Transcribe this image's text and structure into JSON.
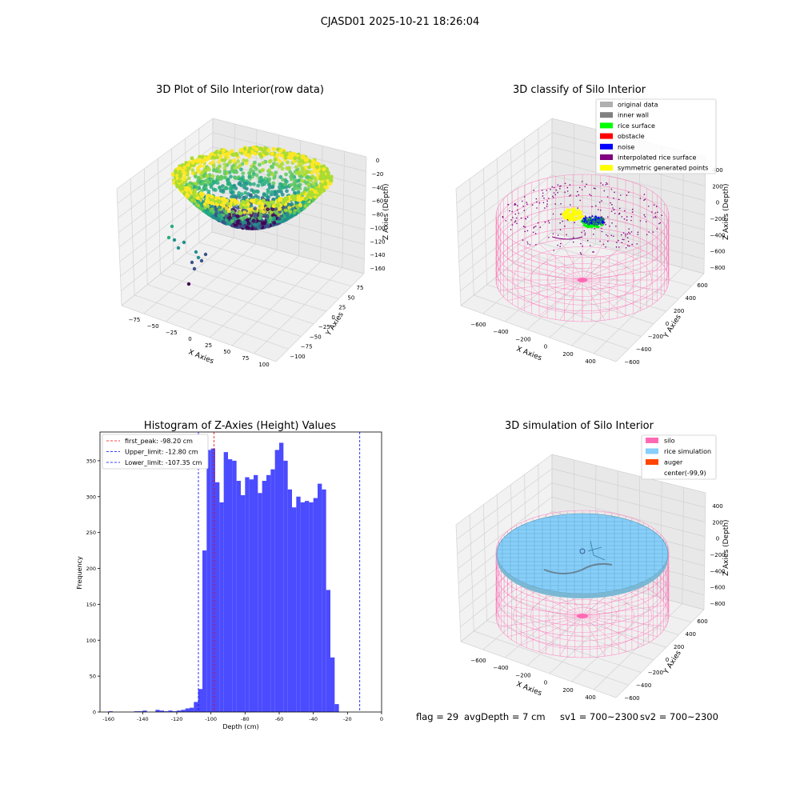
{
  "figure": {
    "suptitle": "CJASD01 2025-10-21 18:26:04",
    "footer": {
      "flag": "flag = 29",
      "avg_depth": "avgDepth = 7 cm",
      "sv1": "sv1 = 700~2300",
      "sv2": "sv2 = 700~2300"
    }
  },
  "colors": {
    "hist_bar": "#4b4bff",
    "first_peak": "#ff0000",
    "limit": "#0000ff",
    "silo": "#ff69b4",
    "rice_simulation": "#87cefa",
    "auger": "#ff4500",
    "original_data": "#b0b0b0",
    "inner_wall": "#808080",
    "rice_surface": "#00ff00",
    "obstacle": "#ff0000",
    "noise": "#0000ff",
    "interpolated_rice_surface": "#800080",
    "symmetric_generated_points": "#ffff00"
  },
  "chart_data": [
    {
      "type": "scatter",
      "title": "3D Plot of Silo Interior(row data)",
      "xlabel": "X Axies",
      "ylabel": "Y Axies",
      "zlabel": "Z Axies (Depth)",
      "xticks": [
        "−75",
        "−50",
        "−25",
        "0",
        "25",
        "50",
        "75",
        "100"
      ],
      "yticks": [
        "−100",
        "−75",
        "−50",
        "−25",
        "0",
        "25",
        "50",
        "75"
      ],
      "zticks": [
        "0",
        "−20",
        "−40",
        "−60",
        "−80",
        "−100",
        "−120",
        "−140",
        "−160"
      ],
      "colormap": "viridis"
    },
    {
      "type": "scatter",
      "title": "3D classify of Silo Interior",
      "xlabel": "X Axies",
      "ylabel": "Y Axies",
      "zlabel": "Z Axies (Depth)",
      "xticks": [
        "−600",
        "−400",
        "−200",
        "0",
        "200",
        "400"
      ],
      "yticks": [
        "−600",
        "−400",
        "−200",
        "0",
        "200",
        "400",
        "600"
      ],
      "zticks": [
        "400",
        "200",
        "0",
        "−200",
        "−400",
        "−600",
        "−800"
      ],
      "legend_position": "top-right",
      "legend": [
        {
          "label": "original data",
          "color": "#b0b0b0"
        },
        {
          "label": "inner wall",
          "color": "#808080"
        },
        {
          "label": "rice surface",
          "color": "#00ff00"
        },
        {
          "label": "obstacle",
          "color": "#ff0000"
        },
        {
          "label": "noise",
          "color": "#0000ff"
        },
        {
          "label": "interpolated rice surface",
          "color": "#800080"
        },
        {
          "label": "symmetric generated points",
          "color": "#ffff00"
        }
      ]
    },
    {
      "type": "bar",
      "title": "Histogram of Z-Axies (Height) Values",
      "xlabel": "Depth (cm)",
      "ylabel": "Frequency",
      "xlim": [
        -165,
        0
      ],
      "ylim": [
        0,
        390
      ],
      "xticks": [
        -160,
        -140,
        -120,
        -100,
        -80,
        -60,
        -40,
        -20,
        0
      ],
      "yticks": [
        0,
        50,
        100,
        150,
        200,
        250,
        300,
        350
      ],
      "bin_width": 2.5,
      "bins": [
        [
          -160,
          1
        ],
        [
          -145,
          1
        ],
        [
          -142.5,
          1
        ],
        [
          -140,
          2
        ],
        [
          -132.5,
          3
        ],
        [
          -130,
          2
        ],
        [
          -127.5,
          1
        ],
        [
          -125,
          2
        ],
        [
          -122.5,
          1
        ],
        [
          -120,
          2
        ],
        [
          -117.5,
          3
        ],
        [
          -115,
          5
        ],
        [
          -112.5,
          6
        ],
        [
          -110,
          14
        ],
        [
          -107.5,
          32
        ],
        [
          -105,
          225
        ],
        [
          -102.5,
          365
        ],
        [
          -100,
          367
        ],
        [
          -97.5,
          320
        ],
        [
          -95,
          292
        ],
        [
          -92.5,
          362
        ],
        [
          -90,
          352
        ],
        [
          -87.5,
          350
        ],
        [
          -85,
          322
        ],
        [
          -82.5,
          302
        ],
        [
          -80,
          327
        ],
        [
          -77.5,
          324
        ],
        [
          -75,
          330
        ],
        [
          -72.5,
          305
        ],
        [
          -70,
          322
        ],
        [
          -67.5,
          330
        ],
        [
          -65,
          338
        ],
        [
          -62.5,
          365
        ],
        [
          -60,
          375
        ],
        [
          -57.5,
          350
        ],
        [
          -55,
          310
        ],
        [
          -52.5,
          285
        ],
        [
          -50,
          300
        ],
        [
          -47.5,
          292
        ],
        [
          -45,
          294
        ],
        [
          -42.5,
          292
        ],
        [
          -40,
          298
        ],
        [
          -37.5,
          318
        ],
        [
          -35,
          310
        ],
        [
          -32.5,
          170
        ],
        [
          -30,
          76
        ],
        [
          -27.5,
          11
        ]
      ],
      "vlines": [
        {
          "label": "first_peak: -98.20 cm",
          "x": -98.2,
          "color": "#ff0000"
        },
        {
          "label": "Upper_limit: -12.80 cm",
          "x": -12.8,
          "color": "#0000ff"
        },
        {
          "label": "Lower_limit: -107.35 cm",
          "x": -107.35,
          "color": "#0000ff"
        }
      ],
      "legend_position": "top-left"
    },
    {
      "type": "scatter",
      "title": "3D simulation of Silo Interior",
      "xlabel": "X Axies",
      "ylabel": "Y Axies",
      "zlabel": "Z Axies (Depth)",
      "xticks": [
        "−600",
        "−400",
        "−200",
        "0",
        "200",
        "400"
      ],
      "yticks": [
        "−600",
        "−400",
        "−200",
        "0",
        "200",
        "400",
        "600"
      ],
      "zticks": [
        "400",
        "200",
        "0",
        "−200",
        "−400",
        "−600",
        "−800"
      ],
      "legend_position": "top-right",
      "legend": [
        {
          "label": "silo",
          "color": "#ff69b4"
        },
        {
          "label": "rice simulation",
          "color": "#87cefa"
        },
        {
          "label": "auger",
          "color": "#ff4500"
        },
        {
          "label": "center(-99,9)",
          "color": "#ffffff"
        }
      ]
    }
  ]
}
